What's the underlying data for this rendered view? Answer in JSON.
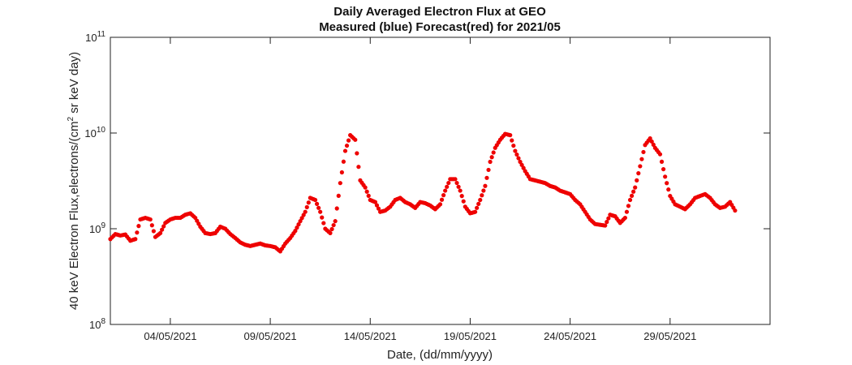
{
  "chart_data": {
    "type": "scatter",
    "title": "Daily Averaged Electron Flux at GEO",
    "subtitle": "Measured (blue) Forecast(red) for 2021/05",
    "xlabel": "Date, (dd/mm/yyyy)",
    "ylabel_main": "40 keV Electron Flux,electrons/(cm",
    "ylabel_sup": "2",
    "ylabel_tail": " sr keV day)",
    "yscale": "log",
    "ylim": [
      100000000.0,
      100000000000.0
    ],
    "xlim": [
      "2021-05-01",
      "2021-06-03"
    ],
    "grid": false,
    "y_ticks": [
      {
        "value": 100000000.0,
        "base": "10",
        "exp": "8"
      },
      {
        "value": 1000000000.0,
        "base": "10",
        "exp": "9"
      },
      {
        "value": 10000000000.0,
        "base": "10",
        "exp": "10"
      },
      {
        "value": 100000000000.0,
        "base": "10",
        "exp": "11"
      }
    ],
    "x_ticks": [
      "04/05/2021",
      "09/05/2021",
      "14/05/2021",
      "19/05/2021",
      "24/05/2021",
      "29/05/2021"
    ],
    "series": [
      {
        "color": "#ee0000",
        "x": [
          "2021-05-01 00:00",
          "2021-05-01 06:00",
          "2021-05-01 12:00",
          "2021-05-01 18:00",
          "2021-05-02 00:00",
          "2021-05-02 06:00",
          "2021-05-02 12:00",
          "2021-05-02 18:00",
          "2021-05-03 00:00",
          "2021-05-03 06:00",
          "2021-05-03 12:00",
          "2021-05-03 18:00",
          "2021-05-04 00:00",
          "2021-05-04 06:00",
          "2021-05-04 12:00",
          "2021-05-04 18:00",
          "2021-05-05 00:00",
          "2021-05-05 06:00",
          "2021-05-05 12:00",
          "2021-05-05 18:00",
          "2021-05-06 00:00",
          "2021-05-06 06:00",
          "2021-05-06 12:00",
          "2021-05-06 18:00",
          "2021-05-07 00:00",
          "2021-05-07 06:00",
          "2021-05-07 12:00",
          "2021-05-07 18:00",
          "2021-05-08 00:00",
          "2021-05-08 06:00",
          "2021-05-08 12:00",
          "2021-05-08 18:00",
          "2021-05-09 00:00",
          "2021-05-09 06:00",
          "2021-05-09 12:00",
          "2021-05-09 18:00",
          "2021-05-10 00:00",
          "2021-05-10 06:00",
          "2021-05-10 12:00",
          "2021-05-10 18:00",
          "2021-05-11 00:00",
          "2021-05-11 06:00",
          "2021-05-11 12:00",
          "2021-05-11 18:00",
          "2021-05-12 00:00",
          "2021-05-12 06:00",
          "2021-05-12 12:00",
          "2021-05-12 18:00",
          "2021-05-13 00:00",
          "2021-05-13 06:00",
          "2021-05-13 12:00",
          "2021-05-13 18:00",
          "2021-05-14 00:00",
          "2021-05-14 06:00",
          "2021-05-14 12:00",
          "2021-05-14 18:00",
          "2021-05-15 00:00",
          "2021-05-15 06:00",
          "2021-05-15 12:00",
          "2021-05-15 18:00",
          "2021-05-16 00:00",
          "2021-05-16 06:00",
          "2021-05-16 12:00",
          "2021-05-16 18:00",
          "2021-05-17 00:00",
          "2021-05-17 06:00",
          "2021-05-17 12:00",
          "2021-05-17 18:00",
          "2021-05-18 00:00",
          "2021-05-18 06:00",
          "2021-05-18 12:00",
          "2021-05-18 18:00",
          "2021-05-19 00:00",
          "2021-05-19 06:00",
          "2021-05-19 12:00",
          "2021-05-19 18:00",
          "2021-05-20 00:00",
          "2021-05-20 06:00",
          "2021-05-20 12:00",
          "2021-05-20 18:00",
          "2021-05-21 00:00",
          "2021-05-21 06:00",
          "2021-05-21 12:00",
          "2021-05-21 18:00",
          "2021-05-22 00:00",
          "2021-05-22 06:00",
          "2021-05-22 12:00",
          "2021-05-22 18:00",
          "2021-05-23 00:00",
          "2021-05-23 06:00",
          "2021-05-23 12:00",
          "2021-05-23 18:00",
          "2021-05-24 00:00",
          "2021-05-24 06:00",
          "2021-05-24 12:00",
          "2021-05-24 18:00",
          "2021-05-25 00:00",
          "2021-05-25 06:00",
          "2021-05-25 12:00",
          "2021-05-25 18:00",
          "2021-05-26 00:00",
          "2021-05-26 06:00",
          "2021-05-26 12:00",
          "2021-05-26 18:00",
          "2021-05-27 00:00",
          "2021-05-27 06:00",
          "2021-05-27 12:00",
          "2021-05-27 18:00",
          "2021-05-28 00:00",
          "2021-05-28 06:00",
          "2021-05-28 12:00",
          "2021-05-28 18:00",
          "2021-05-29 00:00",
          "2021-05-29 06:00",
          "2021-05-29 12:00",
          "2021-05-29 18:00",
          "2021-05-30 00:00",
          "2021-05-30 06:00",
          "2021-05-30 12:00",
          "2021-05-30 18:00",
          "2021-05-31 00:00",
          "2021-05-31 06:00",
          "2021-05-31 12:00",
          "2021-05-31 18:00",
          "2021-06-01 00:00",
          "2021-06-01 06:00"
        ],
        "y": [
          780000000.0,
          880000000.0,
          850000000.0,
          870000000.0,
          750000000.0,
          780000000.0,
          1250000000.0,
          1300000000.0,
          1250000000.0,
          820000000.0,
          900000000.0,
          1150000000.0,
          1250000000.0,
          1300000000.0,
          1300000000.0,
          1400000000.0,
          1450000000.0,
          1300000000.0,
          1050000000.0,
          900000000.0,
          880000000.0,
          900000000.0,
          1050000000.0,
          1000000000.0,
          880000000.0,
          800000000.0,
          720000000.0,
          680000000.0,
          660000000.0,
          680000000.0,
          700000000.0,
          670000000.0,
          660000000.0,
          640000000.0,
          580000000.0,
          700000000.0,
          800000000.0,
          950000000.0,
          1200000000.0,
          1500000000.0,
          2100000000.0,
          2000000000.0,
          1500000000.0,
          1000000000.0,
          900000000.0,
          1200000000.0,
          3000000000.0,
          6500000000.0,
          9500000000.0,
          8500000000.0,
          3200000000.0,
          2700000000.0,
          2000000000.0,
          1900000000.0,
          1500000000.0,
          1550000000.0,
          1700000000.0,
          2000000000.0,
          2100000000.0,
          1900000000.0,
          1800000000.0,
          1650000000.0,
          1900000000.0,
          1850000000.0,
          1750000000.0,
          1600000000.0,
          1800000000.0,
          2500000000.0,
          3300000000.0,
          3300000000.0,
          2500000000.0,
          1700000000.0,
          1450000000.0,
          1500000000.0,
          2000000000.0,
          2800000000.0,
          5000000000.0,
          7000000000.0,
          8500000000.0,
          9800000000.0,
          9500000000.0,
          6500000000.0,
          5000000000.0,
          4000000000.0,
          3300000000.0,
          3200000000.0,
          3100000000.0,
          3000000000.0,
          2800000000.0,
          2700000000.0,
          2500000000.0,
          2400000000.0,
          2300000000.0,
          2000000000.0,
          1800000000.0,
          1500000000.0,
          1250000000.0,
          1120000000.0,
          1100000000.0,
          1080000000.0,
          1400000000.0,
          1350000000.0,
          1150000000.0,
          1300000000.0,
          2000000000.0,
          2700000000.0,
          4500000000.0,
          7500000000.0,
          8800000000.0,
          7000000000.0,
          6000000000.0,
          3500000000.0,
          2200000000.0,
          1800000000.0,
          1700000000.0,
          1600000000.0,
          1800000000.0,
          2100000000.0,
          2200000000.0,
          2300000000.0,
          2100000000.0,
          1800000000.0,
          1650000000.0,
          1700000000.0,
          1900000000.0,
          1550000000.0
        ]
      }
    ]
  }
}
